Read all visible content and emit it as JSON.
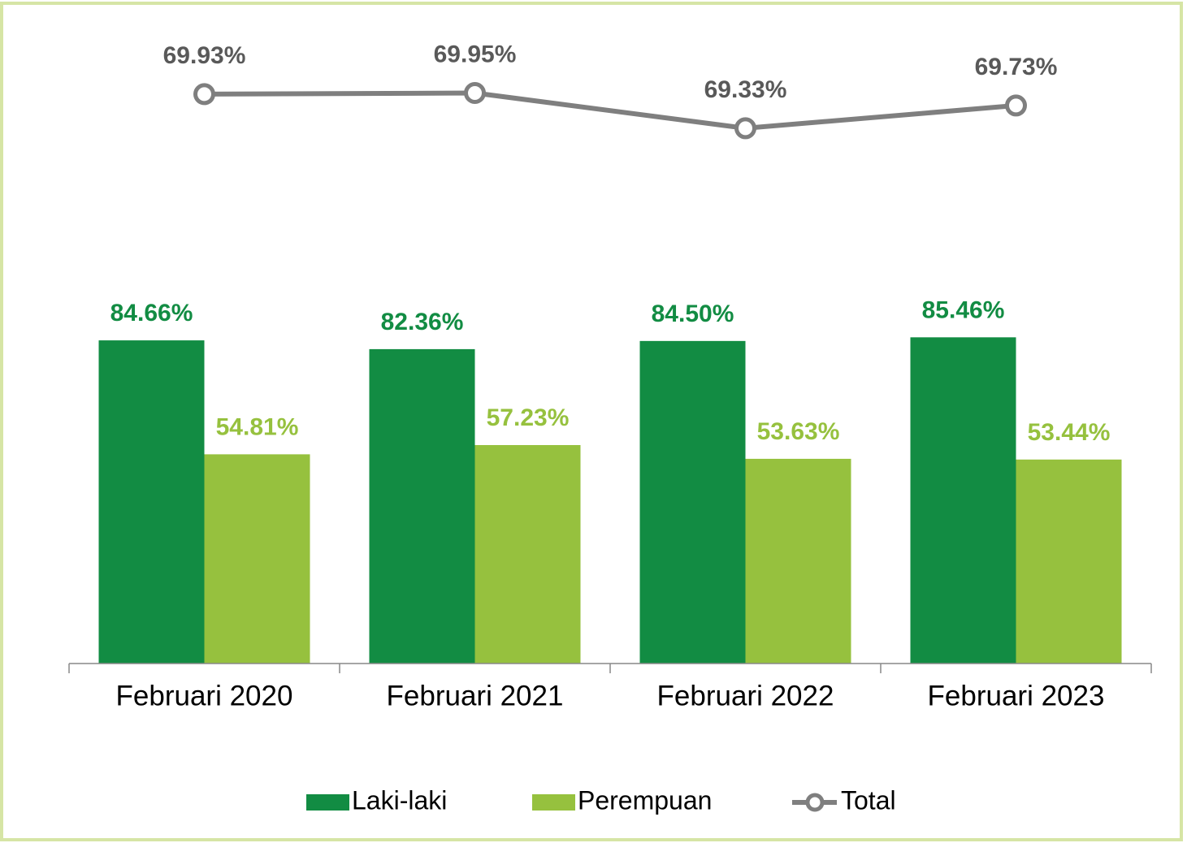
{
  "chart_data": {
    "type": "bar",
    "categories": [
      "Februari 2020",
      "Februari 2021",
      "Februari 2022",
      "Februari 2023"
    ],
    "ylim": [
      0,
      100
    ],
    "y2lim": [
      68,
      70.5
    ],
    "series": [
      {
        "name": "Laki-laki",
        "type": "bar",
        "color": "#128c43",
        "values": [
          84.66,
          82.36,
          84.5,
          85.46
        ],
        "value_labels": [
          "84.66%",
          "82.36%",
          "84.50%",
          "85.46%"
        ]
      },
      {
        "name": "Perempuan",
        "type": "bar",
        "color": "#96c13e",
        "values": [
          54.81,
          57.23,
          53.63,
          53.44
        ],
        "value_labels": [
          "54.81%",
          "57.23%",
          "53.63%",
          "53.44%"
        ]
      },
      {
        "name": "Total",
        "type": "line",
        "axis": "y2",
        "color": "#7f7f7f",
        "values": [
          69.93,
          69.95,
          69.33,
          69.73
        ],
        "value_labels": [
          "69.93%",
          "69.95%",
          "69.33%",
          "69.73%"
        ]
      }
    ],
    "legend": "bottom"
  }
}
